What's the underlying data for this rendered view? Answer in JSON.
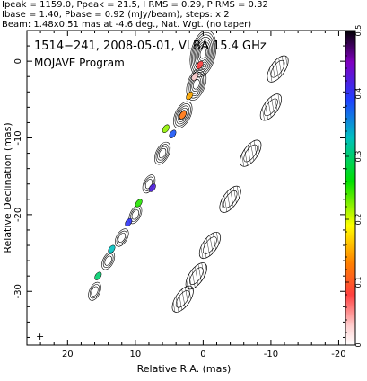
{
  "header": {
    "line1": "Ipeak = 1159.0, Ppeak = 21.5, I RMS = 0.29, P RMS = 0.32",
    "line2": "Ibase = 1.40, Pbase = 0.92 (mJy/beam), steps: x 2",
    "line3": "Beam: 1.48x0.51 mas at -4.6 deg., Nat. Wgt. (no taper)"
  },
  "chart_data": {
    "type": "heatmap",
    "title": "1514−241, 2008-05-01, VLBA 15.4 GHz",
    "subtitle": "MOJAVE Program",
    "xlabel": "Relative R.A. (mas)",
    "ylabel": "Relative Declination (mas)",
    "xlim": [
      26,
      -21
    ],
    "ylim": [
      -37,
      4
    ],
    "x_ticks": [
      20,
      10,
      0,
      -10,
      -20
    ],
    "y_ticks": [
      0,
      -10,
      -20,
      -30
    ],
    "colorbar": {
      "range": [
        0,
        0.5
      ],
      "ticks": [
        0,
        0.1,
        0.2,
        0.3,
        0.4,
        0.5
      ],
      "tick_labels": [
        "0",
        "0.1",
        "0.2",
        "0.3",
        "0.4",
        "0.5"
      ]
    },
    "polarized_jet_components": [
      {
        "x": 0.5,
        "y": -0.5,
        "frac": 0.08
      },
      {
        "x": 1.2,
        "y": -2.0,
        "frac": 0.03
      },
      {
        "x": 2.0,
        "y": -4.5,
        "frac": 0.15
      },
      {
        "x": 3.0,
        "y": -7.0,
        "frac": 0.12
      },
      {
        "x": 4.5,
        "y": -9.5,
        "frac": 0.38
      },
      {
        "x": 5.5,
        "y": -8.8,
        "frac": 0.22
      },
      {
        "x": 7.5,
        "y": -16.5,
        "frac": 0.42
      },
      {
        "x": 9.5,
        "y": -18.5,
        "frac": 0.25
      },
      {
        "x": 11.0,
        "y": -21.0,
        "frac": 0.4
      },
      {
        "x": 13.5,
        "y": -24.5,
        "frac": 0.33
      },
      {
        "x": 15.5,
        "y": -28.0,
        "frac": 0.3
      }
    ],
    "stokes_i_contour_ridge": [
      {
        "x": 0,
        "y": 1
      },
      {
        "x": 1,
        "y": -3
      },
      {
        "x": 3,
        "y": -7
      },
      {
        "x": 6,
        "y": -12
      },
      {
        "x": 8,
        "y": -16
      },
      {
        "x": 10,
        "y": -20
      },
      {
        "x": 12,
        "y": -23
      },
      {
        "x": 14,
        "y": -26
      },
      {
        "x": 16,
        "y": -30
      }
    ],
    "polarized_intensity_contour_ridge": [
      {
        "x": -11,
        "y": -1
      },
      {
        "x": -10,
        "y": -6
      },
      {
        "x": -7,
        "y": -12
      },
      {
        "x": -4,
        "y": -18
      },
      {
        "x": -1,
        "y": -24
      },
      {
        "x": 1,
        "y": -28
      },
      {
        "x": 3,
        "y": -31
      }
    ]
  }
}
